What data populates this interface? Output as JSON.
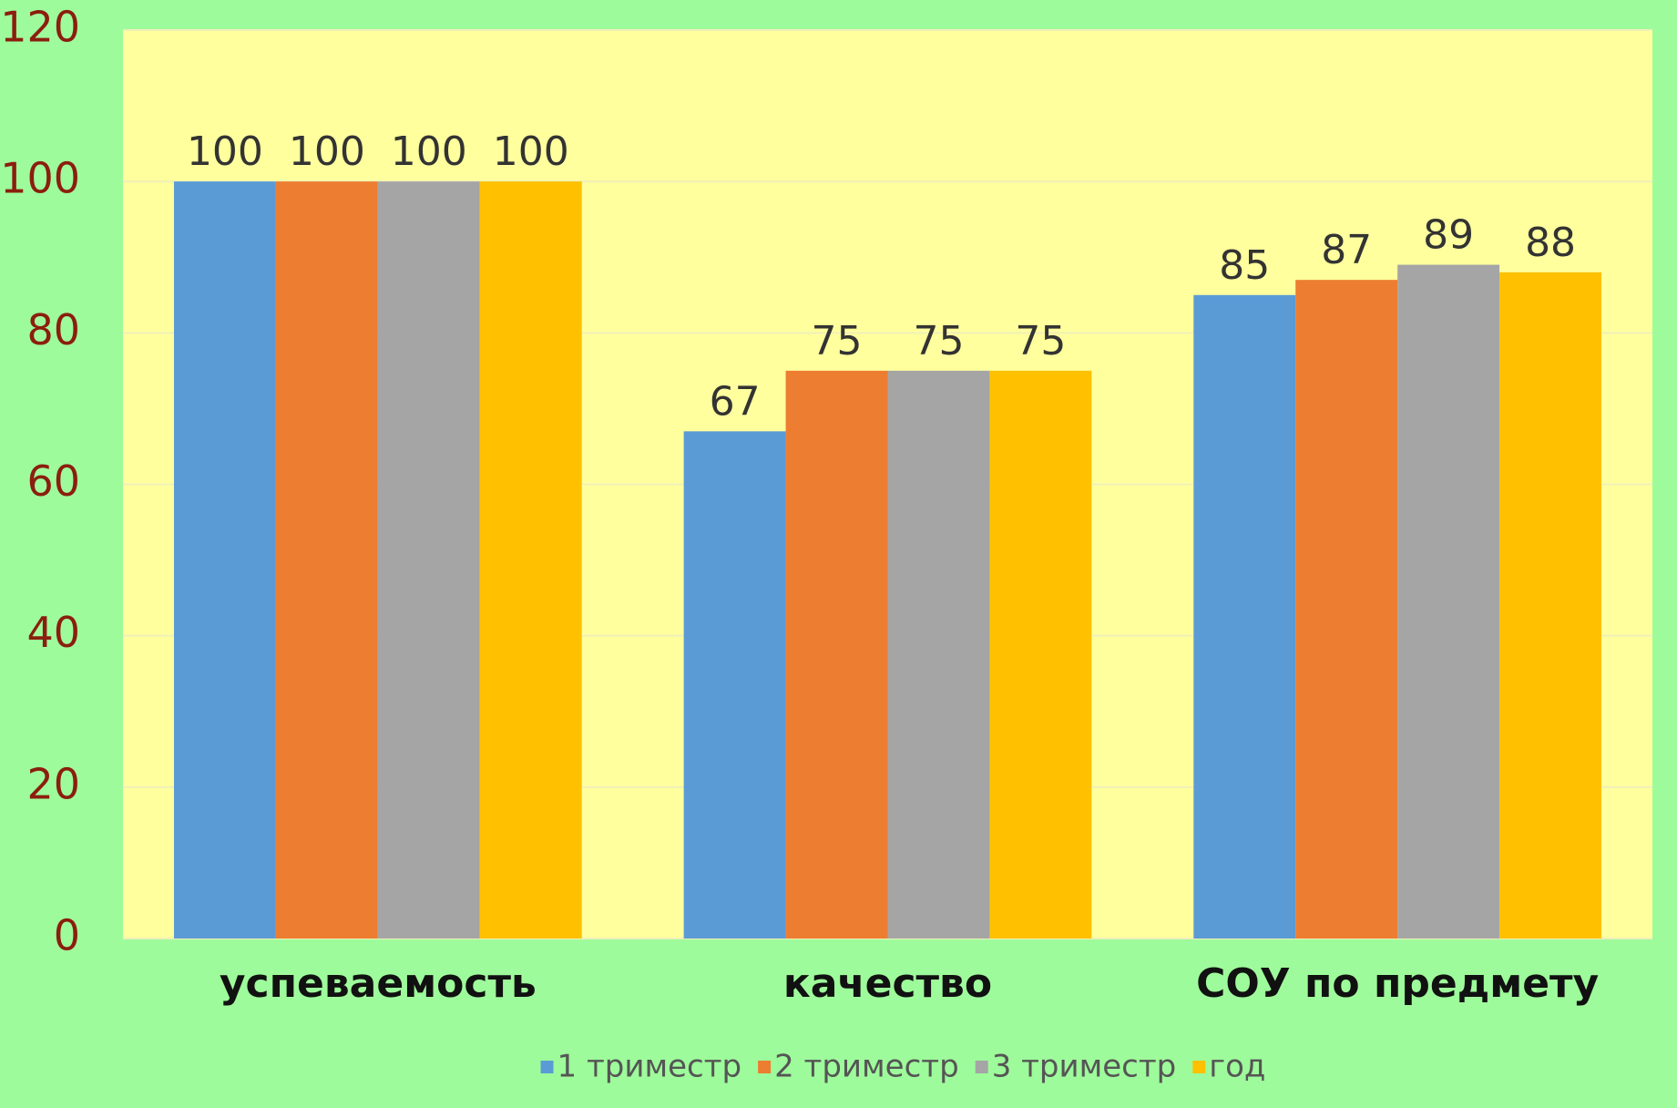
{
  "chart_data": {
    "type": "bar",
    "categories": [
      "успеваемость",
      "качество",
      "СОУ по предмету"
    ],
    "series": [
      {
        "name": "1 триместр",
        "color": "#5b9bd5",
        "values": [
          100,
          67,
          85
        ]
      },
      {
        "name": "2 триместр",
        "color": "#ed7d31",
        "values": [
          100,
          75,
          87
        ]
      },
      {
        "name": "3 триместр",
        "color": "#a5a5a5",
        "values": [
          100,
          75,
          89
        ]
      },
      {
        "name": "год",
        "color": "#ffc000",
        "values": [
          100,
          75,
          88
        ]
      }
    ],
    "ylim": [
      0,
      120
    ],
    "yticks": [
      0,
      20,
      40,
      60,
      80,
      100,
      120
    ],
    "grid": true,
    "legend": "bottom"
  }
}
